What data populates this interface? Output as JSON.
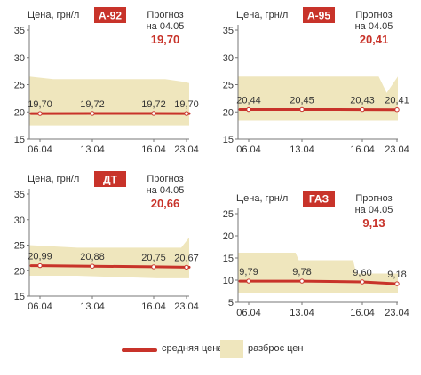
{
  "colors": {
    "line": "#c8332a",
    "band": "#efe6bd",
    "badge": "#c8332a",
    "axis": "#777777"
  },
  "legend": {
    "line_label": "средняя цена",
    "band_label": "разброс цен"
  },
  "chart_data": [
    {
      "type": "line",
      "badge": "А-92",
      "ylabel": "Цена, грн/л",
      "forecast_label": "Прогноз на 04.05",
      "forecast_label_lines": [
        "Прогноз",
        "на 04.05"
      ],
      "forecast_value": "19,70",
      "y_ticks": [
        15,
        20,
        25,
        30,
        35
      ],
      "ylim": [
        15,
        35
      ],
      "x_ticks": [
        "06.04",
        "13.04",
        "16.04",
        "23.04"
      ],
      "series": [
        {
          "name": "средняя цена",
          "x": [
            "06.04",
            "13.04",
            "16.04",
            "23.04"
          ],
          "values": [
            19.7,
            19.72,
            19.72,
            19.7
          ],
          "labels": [
            "19,70",
            "19,72",
            "19,72",
            "19,70"
          ]
        }
      ],
      "band": {
        "x": [
          0,
          0.15,
          0.85,
          0.97,
          1
        ],
        "upper": [
          26.5,
          26,
          26,
          25.5,
          25.3
        ],
        "lower": [
          17.5,
          17.5,
          17.5,
          17.5,
          17.5
        ]
      }
    },
    {
      "type": "line",
      "badge": "А-95",
      "ylabel": "Цена, грн/л",
      "forecast_label": "Прогноз на 04.05",
      "forecast_label_lines": [
        "Прогноз",
        "на 04.05"
      ],
      "forecast_value": "20,41",
      "y_ticks": [
        15,
        20,
        25,
        30,
        35
      ],
      "ylim": [
        15,
        35
      ],
      "x_ticks": [
        "06.04",
        "13.04",
        "16.04",
        "23.04"
      ],
      "series": [
        {
          "name": "средняя цена",
          "x": [
            "06.04",
            "13.04",
            "16.04",
            "23.04"
          ],
          "values": [
            20.44,
            20.45,
            20.43,
            20.41
          ],
          "labels": [
            "20,44",
            "20,45",
            "20,43",
            "20,41"
          ]
        }
      ],
      "band": {
        "x": [
          0,
          0.2,
          0.88,
          0.93,
          1
        ],
        "upper": [
          26.5,
          26.5,
          26.5,
          23.5,
          26.5
        ],
        "lower": [
          18.5,
          18.5,
          18.5,
          18.5,
          18.5
        ]
      }
    },
    {
      "type": "line",
      "badge": "ДТ",
      "ylabel": "Цена, грн/л",
      "forecast_label": "Прогноз на 04.05",
      "forecast_label_lines": [
        "Прогноз",
        "на 04.05"
      ],
      "forecast_value": "20,66",
      "y_ticks": [
        15,
        20,
        25,
        30,
        35
      ],
      "ylim": [
        15,
        35
      ],
      "x_ticks": [
        "06.04",
        "13.04",
        "16.04",
        "23.04"
      ],
      "series": [
        {
          "name": "средняя цена",
          "x": [
            "06.04",
            "13.04",
            "16.04",
            "23.04"
          ],
          "values": [
            20.99,
            20.88,
            20.75,
            20.67
          ],
          "labels": [
            "20,99",
            "20,88",
            "20,75",
            "20,67"
          ]
        }
      ],
      "band": {
        "x": [
          0,
          0.3,
          0.8,
          0.95,
          1
        ],
        "upper": [
          25,
          24.5,
          24.5,
          24.5,
          26.5
        ],
        "lower": [
          19,
          19,
          18.5,
          18.5,
          18.5
        ]
      }
    },
    {
      "type": "line",
      "badge": "ГАЗ",
      "ylabel": "Цена, грн/л",
      "forecast_label": "Прогноз на 04.05",
      "forecast_label_lines": [
        "Прогноз",
        "на 04.05"
      ],
      "forecast_value": "9,13",
      "y_ticks": [
        5,
        10,
        15,
        20,
        25
      ],
      "ylim": [
        5,
        25
      ],
      "x_ticks": [
        "06.04",
        "13.04",
        "16.04",
        "23.04"
      ],
      "series": [
        {
          "name": "средняя цена",
          "x": [
            "06.04",
            "13.04",
            "16.04",
            "23.04"
          ],
          "values": [
            9.79,
            9.78,
            9.6,
            9.18
          ],
          "labels": [
            "9,79",
            "9,78",
            "9,60",
            "9,18"
          ]
        }
      ],
      "band": {
        "x": [
          0,
          0.36,
          0.38,
          0.72,
          0.74,
          1
        ],
        "upper": [
          16.2,
          16.2,
          14.5,
          14.5,
          11.5,
          11.5
        ],
        "lower": [
          7,
          7,
          7,
          7,
          7,
          7
        ]
      }
    }
  ]
}
